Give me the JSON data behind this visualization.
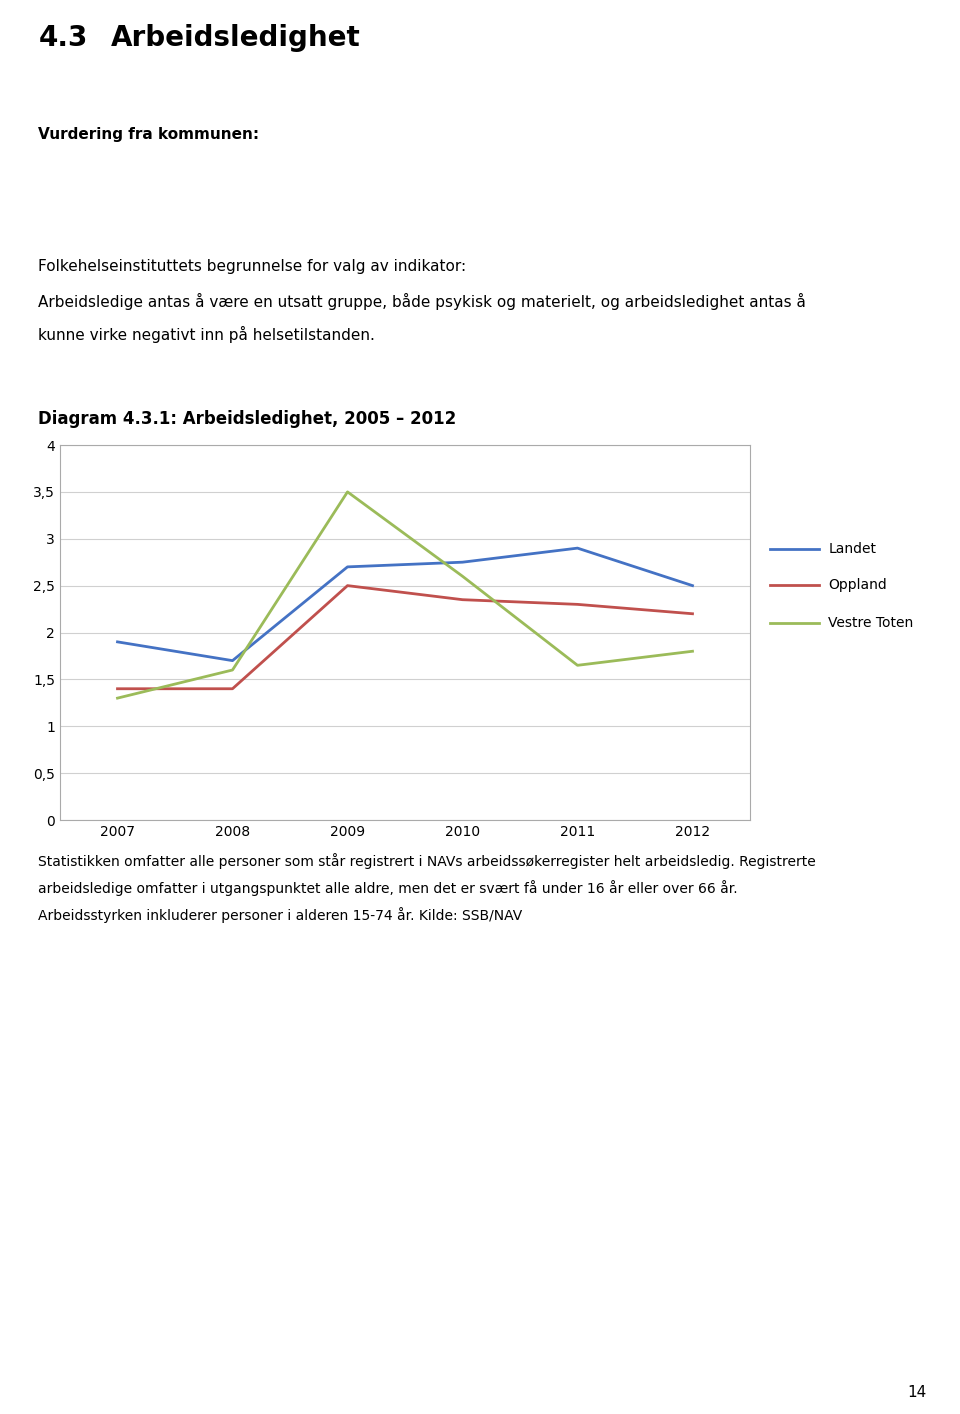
{
  "box_label": "Vurdering fra kommunen:",
  "description_line1": "Folkehelseinstituttets begrunnelse for valg av indikator:",
  "description_line2": "Arbeidsledige antas å være en utsatt gruppe, både psykisk og materielt, og arbeidsledighet antas å",
  "description_line3": "kunne virke negativt inn på helsetilstanden.",
  "diagram_title": "Diagram 4.3.1: Arbeidsledighet, 2005 – 2012",
  "years": [
    2007,
    2008,
    2009,
    2010,
    2011,
    2012
  ],
  "landet": [
    1.9,
    1.7,
    2.7,
    2.75,
    2.9,
    2.5
  ],
  "oppland": [
    1.4,
    1.4,
    2.5,
    2.35,
    2.3,
    2.2
  ],
  "vestre_toten": [
    1.3,
    1.6,
    3.5,
    2.6,
    1.65,
    1.8
  ],
  "landet_color": "#4472C4",
  "oppland_color": "#C0504D",
  "vestre_toten_color": "#9BBB59",
  "landet_label": "Landet",
  "oppland_label": "Oppland",
  "vestre_toten_label": "Vestre Toten",
  "ylim": [
    0,
    4
  ],
  "yticks": [
    0,
    0.5,
    1,
    1.5,
    2,
    2.5,
    3,
    3.5,
    4
  ],
  "ytick_labels": [
    "0",
    "0,5",
    "1",
    "1,5",
    "2",
    "2,5",
    "3",
    "3,5",
    "4"
  ],
  "blue_box_color": "#BDD7EE",
  "desc_bg_color": "#E0E0E0",
  "footer_text_line1": "Statistikken omfatter alle personer som står registrert i NAVs arbeidssøkerregister helt arbeidsledig. Registrerte",
  "footer_text_line2": "arbeidsledige omfatter i utgangspunktet alle aldre, men det er svært få under 16 år eller over 66 år.",
  "footer_text_line3": "Arbeidsstyrken inkluderer personer i alderen 15-74 år. Kilde: SSB/NAV",
  "page_number": "14"
}
